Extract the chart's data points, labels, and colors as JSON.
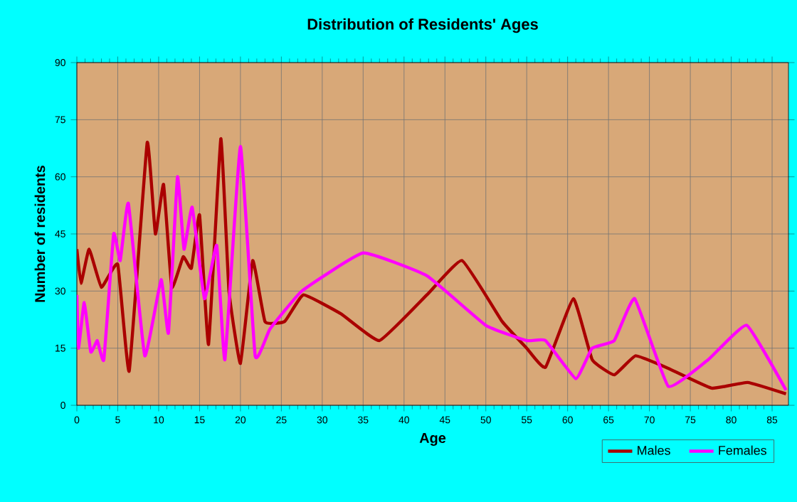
{
  "chart_data": {
    "type": "line",
    "title": "Distribution of Residents' Ages",
    "xlabel": "Age",
    "ylabel": "Number of residents",
    "xlim": [
      0,
      87
    ],
    "xticks": [
      0,
      5,
      10,
      15,
      20,
      25,
      30,
      35,
      40,
      45,
      50,
      55,
      60,
      65,
      70,
      75,
      80,
      85
    ],
    "ylim": [
      0,
      90
    ],
    "yticks": [
      0,
      15,
      30,
      45,
      60,
      75,
      90
    ],
    "grid": true,
    "legend": "bottom right",
    "marker": "none",
    "series": [
      {
        "name": "Males",
        "color": "#aa0000",
        "x": [
          0,
          0.5,
          1.5,
          3,
          5,
          6.4,
          8.6,
          9.6,
          10.6,
          11.6,
          13,
          14,
          15,
          16.1,
          17.6,
          18.6,
          20,
          21.5,
          23,
          25.4,
          27.7,
          32.3,
          37,
          42.8,
          47.1,
          52,
          55,
          57.3,
          60.7,
          63,
          65.7,
          68.3,
          72,
          77.6,
          82,
          86.7
        ],
        "values": [
          41,
          32,
          41,
          31,
          37,
          9,
          69,
          45,
          58,
          31,
          39,
          36,
          50,
          16,
          70,
          30,
          11,
          38,
          22,
          22,
          29,
          24,
          17,
          29,
          38,
          22,
          15,
          10,
          28,
          12,
          8,
          13,
          10,
          4.5,
          6,
          3
        ]
      },
      {
        "name": "Females",
        "color": "#ff00ff",
        "x": [
          0,
          0.2,
          0.9,
          1.7,
          2.5,
          3.3,
          4.5,
          5.3,
          6.3,
          8.3,
          10.3,
          11.2,
          12.3,
          13.1,
          14.1,
          15.6,
          17.1,
          18.1,
          20,
          21.8,
          23.6,
          27.5,
          35,
          42.8,
          50,
          55,
          57.3,
          61,
          63,
          65.7,
          68.2,
          72.3,
          77.2,
          81.9,
          86.7
        ],
        "values": [
          29,
          15,
          27,
          14,
          17,
          12,
          45,
          38,
          53,
          13,
          33,
          19,
          60,
          41,
          52,
          28,
          42,
          12,
          68,
          13,
          20,
          30,
          40,
          34,
          21,
          17,
          17,
          7,
          15,
          17,
          28,
          5,
          12,
          21,
          4
        ]
      }
    ]
  }
}
